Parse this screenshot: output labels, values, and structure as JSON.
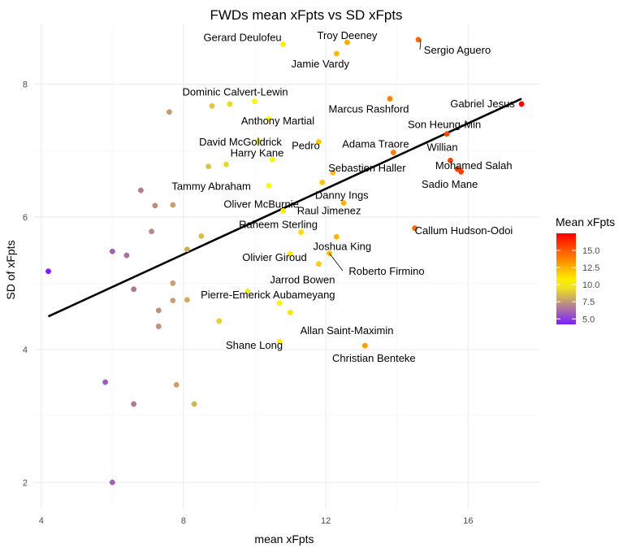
{
  "chart_data": {
    "type": "scatter",
    "title": "FWDs mean xFpts vs SD xFpts",
    "xlabel": "mean xFpts",
    "ylabel": "SD of  xFpts",
    "xlim": [
      3.8,
      18.0
    ],
    "ylim": [
      1.6,
      8.9
    ],
    "x_ticks": [
      4,
      8,
      12,
      16
    ],
    "y_ticks": [
      2,
      4,
      6,
      8
    ],
    "grid": true,
    "legend": {
      "title": "Mean xFpts",
      "position": "right",
      "range": [
        4.2,
        17.5
      ],
      "ticks": [
        5.0,
        7.5,
        10.0,
        12.5,
        15.0
      ],
      "tick_labels": [
        "5.0",
        "7.5",
        "10.0",
        "12.5",
        "15.0"
      ],
      "colors": [
        "#7a1fff",
        "#ffff00",
        "#ff0000"
      ]
    },
    "trend_line": {
      "x": [
        4.2,
        17.5
      ],
      "y": [
        4.5,
        7.78
      ]
    },
    "points": [
      {
        "x": 10.8,
        "y": 8.6,
        "label": "Gerard Deulofeu"
      },
      {
        "x": 12.6,
        "y": 8.63,
        "label": "Troy Deeney"
      },
      {
        "x": 14.6,
        "y": 8.67,
        "label": "Sergio Aguero"
      },
      {
        "x": 12.3,
        "y": 8.46,
        "label": "Jamie Vardy"
      },
      {
        "x": 10.0,
        "y": 7.74,
        "label": "Dominic Calvert-Lewin"
      },
      {
        "x": 10.4,
        "y": 7.48,
        "label": "Anthony Martial"
      },
      {
        "x": 13.8,
        "y": 7.78,
        "label": "Marcus Rashford"
      },
      {
        "x": 17.5,
        "y": 7.7,
        "label": "Gabriel Jesus"
      },
      {
        "x": 15.4,
        "y": 7.25,
        "label": "Son Heung-Min"
      },
      {
        "x": 10.1,
        "y": 7.14,
        "label": "David McGoldrick"
      },
      {
        "x": 11.8,
        "y": 7.13,
        "label": "Pedro"
      },
      {
        "x": 13.9,
        "y": 6.97,
        "label": "Adama Traore"
      },
      {
        "x": 15.5,
        "y": 6.85,
        "label": "Willian"
      },
      {
        "x": 15.7,
        "y": 6.72,
        "label": "Mohamed Salah"
      },
      {
        "x": 15.8,
        "y": 6.68,
        "label": "Sadio Mane"
      },
      {
        "x": 10.5,
        "y": 6.86,
        "label": "Harry Kane"
      },
      {
        "x": 12.2,
        "y": 6.67,
        "label": "Sebastien Haller"
      },
      {
        "x": 10.4,
        "y": 6.47,
        "label": "Tammy Abraham"
      },
      {
        "x": 11.9,
        "y": 6.52,
        "label": "Danny Ings"
      },
      {
        "x": 10.8,
        "y": 6.09,
        "label": "Oliver McBurnie"
      },
      {
        "x": 12.5,
        "y": 6.21,
        "label": "Raul Jimenez"
      },
      {
        "x": 14.5,
        "y": 5.83,
        "label": "Callum Hudson-Odoi"
      },
      {
        "x": 11.3,
        "y": 5.77,
        "label": "Raheem Sterling"
      },
      {
        "x": 12.3,
        "y": 5.7,
        "label": "Joshua King"
      },
      {
        "x": 11.0,
        "y": 5.44,
        "label": "Olivier Giroud"
      },
      {
        "x": 12.1,
        "y": 5.45,
        "label": "Roberto Firmino"
      },
      {
        "x": 11.8,
        "y": 5.29,
        "label": "Jarrod Bowen"
      },
      {
        "x": 9.8,
        "y": 4.88,
        "label": "Pierre-Emerick Aubameyang"
      },
      {
        "x": 10.7,
        "y": 4.7,
        "label": "Allan Saint-Maximin"
      },
      {
        "x": 11.0,
        "y": 4.56,
        "label": "Allan Saint-Maximin dot"
      },
      {
        "x": 10.7,
        "y": 4.12,
        "label": "Shane Long"
      },
      {
        "x": 13.1,
        "y": 4.06,
        "label": "Christian Benteke"
      },
      {
        "x": 8.8,
        "y": 7.67,
        "label": ""
      },
      {
        "x": 9.3,
        "y": 7.7,
        "label": ""
      },
      {
        "x": 7.6,
        "y": 7.58,
        "label": ""
      },
      {
        "x": 8.7,
        "y": 6.76,
        "label": ""
      },
      {
        "x": 9.2,
        "y": 6.79,
        "label": ""
      },
      {
        "x": 6.8,
        "y": 6.4,
        "label": ""
      },
      {
        "x": 7.2,
        "y": 6.17,
        "label": ""
      },
      {
        "x": 7.7,
        "y": 6.18,
        "label": ""
      },
      {
        "x": 7.1,
        "y": 5.78,
        "label": ""
      },
      {
        "x": 8.5,
        "y": 5.71,
        "label": ""
      },
      {
        "x": 8.1,
        "y": 5.51,
        "label": ""
      },
      {
        "x": 6.0,
        "y": 5.48,
        "label": ""
      },
      {
        "x": 6.4,
        "y": 5.42,
        "label": ""
      },
      {
        "x": 4.2,
        "y": 5.18,
        "label": ""
      },
      {
        "x": 7.7,
        "y": 5.0,
        "label": ""
      },
      {
        "x": 6.6,
        "y": 4.91,
        "label": ""
      },
      {
        "x": 8.1,
        "y": 4.75,
        "label": ""
      },
      {
        "x": 7.7,
        "y": 4.74,
        "label": ""
      },
      {
        "x": 7.3,
        "y": 4.59,
        "label": ""
      },
      {
        "x": 9.0,
        "y": 4.43,
        "label": ""
      },
      {
        "x": 7.3,
        "y": 4.35,
        "label": ""
      },
      {
        "x": 5.8,
        "y": 3.51,
        "label": ""
      },
      {
        "x": 7.8,
        "y": 3.47,
        "label": ""
      },
      {
        "x": 6.6,
        "y": 3.18,
        "label": ""
      },
      {
        "x": 8.3,
        "y": 3.18,
        "label": ""
      },
      {
        "x": 6.0,
        "y": 2.0,
        "label": ""
      }
    ]
  }
}
